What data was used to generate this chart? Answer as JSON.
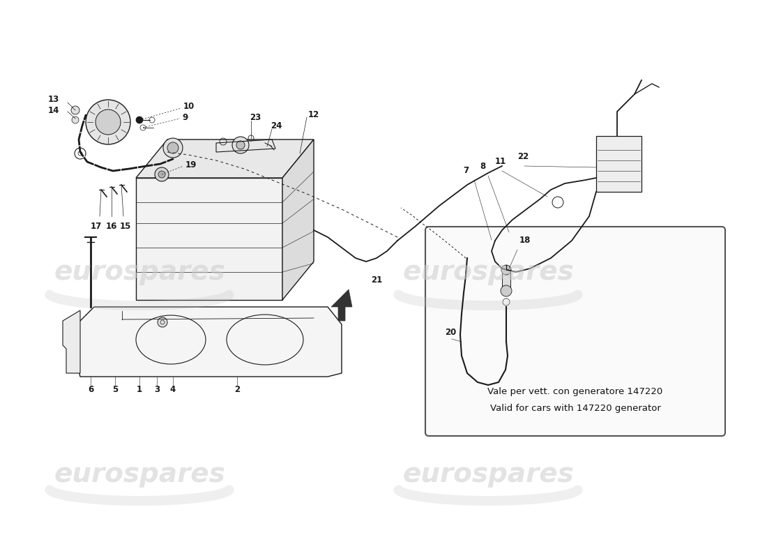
{
  "bg_color": "#ffffff",
  "line_color": "#1a1a1a",
  "watermark_text": "eurospares",
  "watermark_color": "#cccccc",
  "box_text_line1": "Vale per vett. con generatore 147220",
  "box_text_line2": "Valid for cars with 147220 generator",
  "label_fontsize": 8.5,
  "watermark_fontsize": 28
}
